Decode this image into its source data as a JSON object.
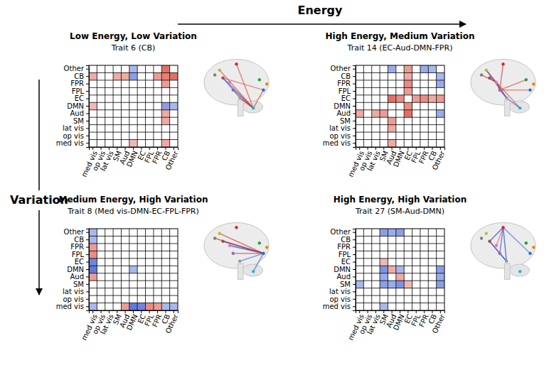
{
  "figure": {
    "xlabel": "Energy",
    "ylabel": "Variation"
  },
  "chart_data": [
    {
      "type": "heatmap",
      "title": "Low Energy, Low Variation",
      "subtitle": "Trait 6 (CB)",
      "grid": true,
      "categories": [
        "med vis",
        "op vis",
        "lat vis",
        "SM",
        "Aud",
        "DMN",
        "EC",
        "FPL",
        "FPR",
        "CB",
        "Other"
      ],
      "cells": [
        {
          "x": "CB",
          "y": "Other",
          "value": 0.7
        },
        {
          "x": "CB",
          "y": "CB",
          "value": 0.6
        },
        {
          "x": "CB",
          "y": "FPR",
          "value": 0.4
        },
        {
          "x": "CB",
          "y": "DMN",
          "value": -0.5
        },
        {
          "x": "CB",
          "y": "Aud",
          "value": 0.3
        },
        {
          "x": "CB",
          "y": "SM",
          "value": 0.3
        },
        {
          "x": "CB",
          "y": "med vis",
          "value": 0.3
        },
        {
          "x": "DMN",
          "y": "Other",
          "value": -0.3
        },
        {
          "x": "med vis",
          "y": "DMN",
          "value": 0.2
        }
      ]
    },
    {
      "type": "heatmap",
      "title": "High Energy, Medium Variation",
      "subtitle": "Trait 14 (EC-Aud-DMN-FPR)",
      "grid": true,
      "categories": [
        "med vis",
        "op vis",
        "lat vis",
        "SM",
        "Aud",
        "DMN",
        "EC",
        "FPL",
        "FPR",
        "CB",
        "Other"
      ],
      "cells": [
        {
          "x": "Aud",
          "y": "EC",
          "value": 0.7
        },
        {
          "x": "Aud",
          "y": "SM",
          "value": 0.4
        },
        {
          "x": "Aud",
          "y": "lat vis",
          "value": 0.3
        },
        {
          "x": "Aud",
          "y": "med vis",
          "value": 0.3
        },
        {
          "x": "DMN",
          "y": "EC",
          "value": 0.5
        },
        {
          "x": "EC",
          "y": "FPL",
          "value": 0.4
        },
        {
          "x": "EC",
          "y": "FPR",
          "value": 0.5
        },
        {
          "x": "EC",
          "y": "CB",
          "value": 0.3
        },
        {
          "x": "EC",
          "y": "Other",
          "value": 0.4
        },
        {
          "x": "Aud",
          "y": "Other",
          "value": -0.4
        },
        {
          "x": "FPR",
          "y": "Other",
          "value": -0.4
        },
        {
          "x": "CB",
          "y": "Other",
          "value": -0.3
        }
      ]
    },
    {
      "type": "heatmap",
      "title": "Medium Energy, High Variation",
      "subtitle": "Trait 8 (Med vis-DMN-EC-FPL-FPR)",
      "grid": true,
      "categories": [
        "med vis",
        "op vis",
        "lat vis",
        "SM",
        "Aud",
        "DMN",
        "EC",
        "FPL",
        "FPR",
        "CB",
        "Other"
      ],
      "cells": [
        {
          "x": "med vis",
          "y": "DMN",
          "value": -0.8
        },
        {
          "x": "med vis",
          "y": "EC",
          "value": -0.7
        },
        {
          "x": "med vis",
          "y": "FPL",
          "value": 0.5
        },
        {
          "x": "med vis",
          "y": "FPR",
          "value": 0.4
        },
        {
          "x": "med vis",
          "y": "Aud",
          "value": 0.4
        },
        {
          "x": "med vis",
          "y": "CB",
          "value": -0.3
        },
        {
          "x": "med vis",
          "y": "Other",
          "value": -0.3
        },
        {
          "x": "med vis",
          "y": "med vis",
          "value": -0.3
        },
        {
          "x": "DMN",
          "y": "DMN",
          "value": -0.3
        }
      ]
    },
    {
      "type": "heatmap",
      "title": "High Energy, High Variation",
      "subtitle": "Trait 27 (SM-Aud-DMN)",
      "grid": true,
      "categories": [
        "med vis",
        "op vis",
        "lat vis",
        "SM",
        "Aud",
        "DMN",
        "EC",
        "FPL",
        "FPR",
        "CB",
        "Other"
      ],
      "cells": [
        {
          "x": "SM",
          "y": "DMN",
          "value": -0.6
        },
        {
          "x": "SM",
          "y": "SM",
          "value": -0.5
        },
        {
          "x": "SM",
          "y": "Aud",
          "value": -0.4
        },
        {
          "x": "SM",
          "y": "Other",
          "value": -0.5
        },
        {
          "x": "SM",
          "y": "med vis",
          "value": -0.3
        },
        {
          "x": "SM",
          "y": "EC",
          "value": 0.2
        },
        {
          "x": "Aud",
          "y": "DMN",
          "value": 0.3
        },
        {
          "x": "Aud",
          "y": "Other",
          "value": -0.4
        },
        {
          "x": "DMN",
          "y": "Other",
          "value": -0.5
        },
        {
          "x": "DMN",
          "y": "DMN",
          "value": -0.3
        }
      ]
    }
  ]
}
